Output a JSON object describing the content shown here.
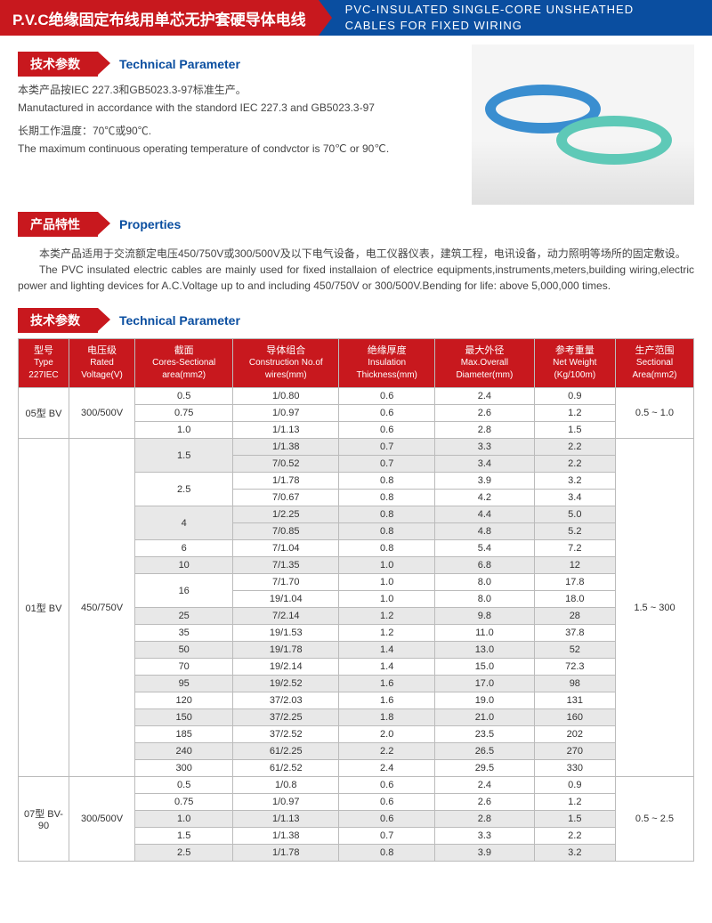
{
  "banner": {
    "left": "P.V.C绝缘固定布线用单芯无护套硬导体电线",
    "right1": "PVC-INSULATED SINGLE-CORE UNSHEATHED",
    "right2": "CABLES FOR FIXED WIRING"
  },
  "section1": {
    "cn": "技术参数",
    "en": "Technical Parameter"
  },
  "desc1": {
    "l1": "本类产品按IEC 227.3和GB5023.3-97标准生产。",
    "l2": "Manutactured in accordance with the standord IEC 227.3 and GB5023.3-97",
    "l3": "长期工作温度：70℃或90℃.",
    "l4": "The maximum continuous operating temperature of condvctor is 70℃ or 90℃."
  },
  "section2": {
    "cn": "产品特性",
    "en": "Properties"
  },
  "properties": {
    "p1": "本类产品适用于交流额定电压450/750V或300/500V及以下电气设备，电工仪器仪表，建筑工程，电讯设备，动力照明等场所的固定敷设。",
    "p2": "The PVC insulated electric cables are mainly used for fixed installaion of electrice equipments,instruments,meters,building wiring,electric power and lighting devices for A.C.Voltage up to and including 450/750V or 300/500V.Bending for life: above 5,000,000 times."
  },
  "section3": {
    "cn": "技术参数",
    "en": "Technical Parameter"
  },
  "table": {
    "headers": [
      {
        "cn": "型号",
        "en": "Type 227IEC"
      },
      {
        "cn": "电压级",
        "en": "Rated Voltage(V)"
      },
      {
        "cn": "截面",
        "en": "Cores-Sectional area(mm2)"
      },
      {
        "cn": "导体组合",
        "en": "Construction No.of wires(mm)"
      },
      {
        "cn": "绝缘厚度",
        "en": "Insulation Thickness(mm)"
      },
      {
        "cn": "最大外径",
        "en": "Max.Overall Diameter(mm)"
      },
      {
        "cn": "参考重量",
        "en": "Net Weight (Kg/100m)"
      },
      {
        "cn": "生产范围",
        "en": "Sectional Area(mm2)"
      }
    ],
    "group1": {
      "type": "05型 BV",
      "voltage": "300/500V",
      "range": "0.5 ~ 1.0",
      "rows": [
        [
          "0.5",
          "1/0.80",
          "0.6",
          "2.4",
          "0.9"
        ],
        [
          "0.75",
          "1/0.97",
          "0.6",
          "2.6",
          "1.2"
        ],
        [
          "1.0",
          "1/1.13",
          "0.6",
          "2.8",
          "1.5"
        ]
      ]
    },
    "group2": {
      "type": "01型 BV",
      "voltage": "450/750V",
      "range": "1.5 ~ 300",
      "subs": [
        {
          "area": "1.5",
          "shade": true,
          "rows": [
            [
              "1/1.38",
              "0.7",
              "3.3",
              "2.2"
            ],
            [
              "7/0.52",
              "0.7",
              "3.4",
              "2.2"
            ]
          ]
        },
        {
          "area": "2.5",
          "shade": false,
          "rows": [
            [
              "1/1.78",
              "0.8",
              "3.9",
              "3.2"
            ],
            [
              "7/0.67",
              "0.8",
              "4.2",
              "3.4"
            ]
          ]
        },
        {
          "area": "4",
          "shade": true,
          "rows": [
            [
              "1/2.25",
              "0.8",
              "4.4",
              "5.0"
            ],
            [
              "7/0.85",
              "0.8",
              "4.8",
              "5.2"
            ]
          ]
        },
        {
          "area": "6",
          "shade": false,
          "rows": [
            [
              "7/1.04",
              "0.8",
              "5.4",
              "7.2"
            ]
          ]
        },
        {
          "area": "10",
          "shade": true,
          "rows": [
            [
              "7/1.35",
              "1.0",
              "6.8",
              "12"
            ]
          ]
        },
        {
          "area": "16",
          "shade": false,
          "rows": [
            [
              "7/1.70",
              "1.0",
              "8.0",
              "17.8"
            ],
            [
              "19/1.04",
              "1.0",
              "8.0",
              "18.0"
            ]
          ]
        },
        {
          "area": "25",
          "shade": true,
          "rows": [
            [
              "7/2.14",
              "1.2",
              "9.8",
              "28"
            ]
          ]
        },
        {
          "area": "35",
          "shade": false,
          "rows": [
            [
              "19/1.53",
              "1.2",
              "11.0",
              "37.8"
            ]
          ]
        },
        {
          "area": "50",
          "shade": true,
          "rows": [
            [
              "19/1.78",
              "1.4",
              "13.0",
              "52"
            ]
          ]
        },
        {
          "area": "70",
          "shade": false,
          "rows": [
            [
              "19/2.14",
              "1.4",
              "15.0",
              "72.3"
            ]
          ]
        },
        {
          "area": "95",
          "shade": true,
          "rows": [
            [
              "19/2.52",
              "1.6",
              "17.0",
              "98"
            ]
          ]
        },
        {
          "area": "120",
          "shade": false,
          "rows": [
            [
              "37/2.03",
              "1.6",
              "19.0",
              "131"
            ]
          ]
        },
        {
          "area": "150",
          "shade": true,
          "rows": [
            [
              "37/2.25",
              "1.8",
              "21.0",
              "160"
            ]
          ]
        },
        {
          "area": "185",
          "shade": false,
          "rows": [
            [
              "37/2.52",
              "2.0",
              "23.5",
              "202"
            ]
          ]
        },
        {
          "area": "240",
          "shade": true,
          "rows": [
            [
              "61/2.25",
              "2.2",
              "26.5",
              "270"
            ]
          ]
        },
        {
          "area": "300",
          "shade": false,
          "rows": [
            [
              "61/2.52",
              "2.4",
              "29.5",
              "330"
            ]
          ]
        }
      ]
    },
    "group3": {
      "type": "07型 BV-90",
      "voltage": "300/500V",
      "range": "0.5 ~ 2.5",
      "rows": [
        {
          "area": "0.5",
          "shade": false,
          "d": [
            "1/0.8",
            "0.6",
            "2.4",
            "0.9"
          ]
        },
        {
          "area": "0.75",
          "shade": false,
          "d": [
            "1/0.97",
            "0.6",
            "2.6",
            "1.2"
          ]
        },
        {
          "area": "1.0",
          "shade": true,
          "d": [
            "1/1.13",
            "0.6",
            "2.8",
            "1.5"
          ]
        },
        {
          "area": "1.5",
          "shade": false,
          "d": [
            "1/1.38",
            "0.7",
            "3.3",
            "2.2"
          ]
        },
        {
          "area": "2.5",
          "shade": true,
          "d": [
            "1/1.78",
            "0.8",
            "3.9",
            "3.2"
          ]
        }
      ]
    }
  }
}
